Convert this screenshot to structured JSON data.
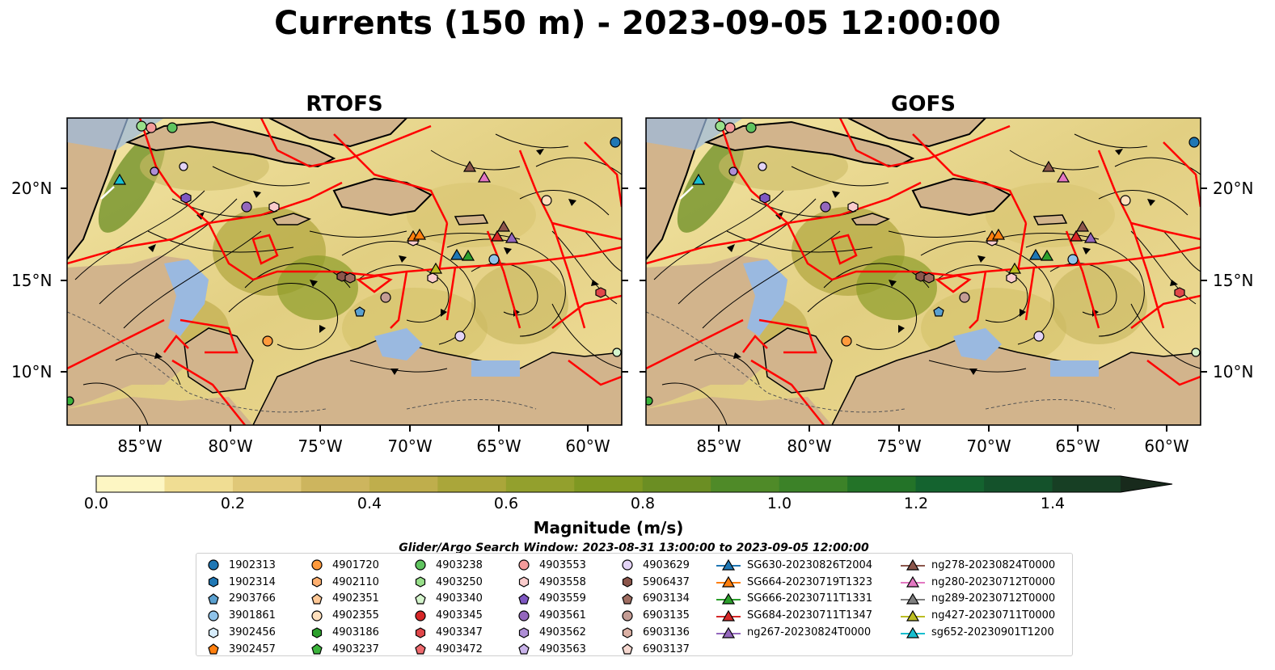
{
  "title": "Currents (150 m) - 2023-09-05 12:00:00",
  "panels": [
    {
      "name": "RTOFS"
    },
    {
      "name": "GOFS"
    }
  ],
  "lon_ticks": [
    "85°W",
    "80°W",
    "75°W",
    "70°W",
    "65°W",
    "60°W"
  ],
  "lat_ticks": [
    "20°N",
    "15°N",
    "10°N"
  ],
  "colorbar": {
    "label": "Magnitude (m/s)",
    "ticks": [
      "0.0",
      "0.2",
      "0.4",
      "0.6",
      "0.8",
      "1.0",
      "1.2",
      "1.4"
    ],
    "colors": [
      "#fdf6c3",
      "#f0dd93",
      "#e0c878",
      "#cdb55e",
      "#bfae4c",
      "#aaa63a",
      "#93a02d",
      "#7f9822",
      "#6b8e23",
      "#4f8a28",
      "#3c8228",
      "#237328",
      "#14632f",
      "#14522b",
      "#173f24",
      "#182a1c"
    ]
  },
  "search_window": "Glider/Argo Search Window: 2023-08-31 13:00:00 to 2023-09-05 12:00:00",
  "legend": {
    "columns": [
      [
        {
          "label": "1902313",
          "marker": "circle",
          "color": "#1f77b4"
        },
        {
          "label": "1902314",
          "marker": "hexagon",
          "color": "#1f77b4"
        },
        {
          "label": "2903766",
          "marker": "pentagon",
          "color": "#5aa0d0"
        },
        {
          "label": "3901861",
          "marker": "circle",
          "color": "#8fc3ea"
        },
        {
          "label": "3902456",
          "marker": "hexagon",
          "color": "#d6ecfb"
        },
        {
          "label": "3902457",
          "marker": "pentagon",
          "color": "#ff7f0e"
        }
      ],
      [
        {
          "label": "4901720",
          "marker": "circle",
          "color": "#ff9a3c"
        },
        {
          "label": "4902110",
          "marker": "hexagon",
          "color": "#ffb070"
        },
        {
          "label": "4902351",
          "marker": "pentagon",
          "color": "#ffc896"
        },
        {
          "label": "4902355",
          "marker": "circle",
          "color": "#ffe0bd"
        },
        {
          "label": "4903186",
          "marker": "hexagon",
          "color": "#2ca02c"
        },
        {
          "label": "4903237",
          "marker": "pentagon",
          "color": "#3cb43c"
        }
      ],
      [
        {
          "label": "4903238",
          "marker": "circle",
          "color": "#5fc35f"
        },
        {
          "label": "4903250",
          "marker": "hexagon",
          "color": "#98df8a"
        },
        {
          "label": "4903340",
          "marker": "pentagon",
          "color": "#d4f4cc"
        },
        {
          "label": "4903345",
          "marker": "circle",
          "color": "#d62728"
        },
        {
          "label": "4903347",
          "marker": "hexagon",
          "color": "#e0474a"
        },
        {
          "label": "4903472",
          "marker": "pentagon",
          "color": "#ee6a6e"
        }
      ],
      [
        {
          "label": "4903553",
          "marker": "circle",
          "color": "#f49b9b"
        },
        {
          "label": "4903558",
          "marker": "hexagon",
          "color": "#fbcccc"
        },
        {
          "label": "4903559",
          "marker": "pentagon",
          "color": "#7e57c2"
        },
        {
          "label": "4903561",
          "marker": "circle",
          "color": "#9467bd"
        },
        {
          "label": "4903562",
          "marker": "hexagon",
          "color": "#ae8ed6"
        },
        {
          "label": "4903563",
          "marker": "pentagon",
          "color": "#c9b3ea"
        }
      ],
      [
        {
          "label": "4903629",
          "marker": "circle",
          "color": "#e3d3f5"
        },
        {
          "label": "5906437",
          "marker": "hexagon",
          "color": "#8c564b"
        },
        {
          "label": "6903134",
          "marker": "pentagon",
          "color": "#a06e62"
        },
        {
          "label": "6903135",
          "marker": "circle",
          "color": "#c49c94"
        },
        {
          "label": "6903136",
          "marker": "hexagon",
          "color": "#dbb0a4"
        },
        {
          "label": "6903137",
          "marker": "pentagon",
          "color": "#f5d7cf"
        }
      ],
      [
        {
          "label": "SG630-20230826T2004",
          "marker": "triangle",
          "color": "#1f77b4"
        },
        {
          "label": "SG664-20230719T1323",
          "marker": "triangle",
          "color": "#ff7f0e"
        },
        {
          "label": "SG666-20230711T1331",
          "marker": "triangle",
          "color": "#2ca02c"
        },
        {
          "label": "SG684-20230711T1347",
          "marker": "triangle",
          "color": "#d62728"
        },
        {
          "label": "ng267-20230824T0000",
          "marker": "triangle",
          "color": "#9467bd"
        }
      ],
      [
        {
          "label": "ng278-20230824T0000",
          "marker": "triangle",
          "color": "#8c564b"
        },
        {
          "label": "ng280-20230712T0000",
          "marker": "triangle",
          "color": "#e377c2"
        },
        {
          "label": "ng289-20230712T0000",
          "marker": "triangle",
          "color": "#7f7f7f"
        },
        {
          "label": "ng427-20230711T0000",
          "marker": "triangle",
          "color": "#bcbd22"
        },
        {
          "label": "sg652-20230901T1200",
          "marker": "triangle",
          "color": "#17becf"
        }
      ]
    ]
  }
}
